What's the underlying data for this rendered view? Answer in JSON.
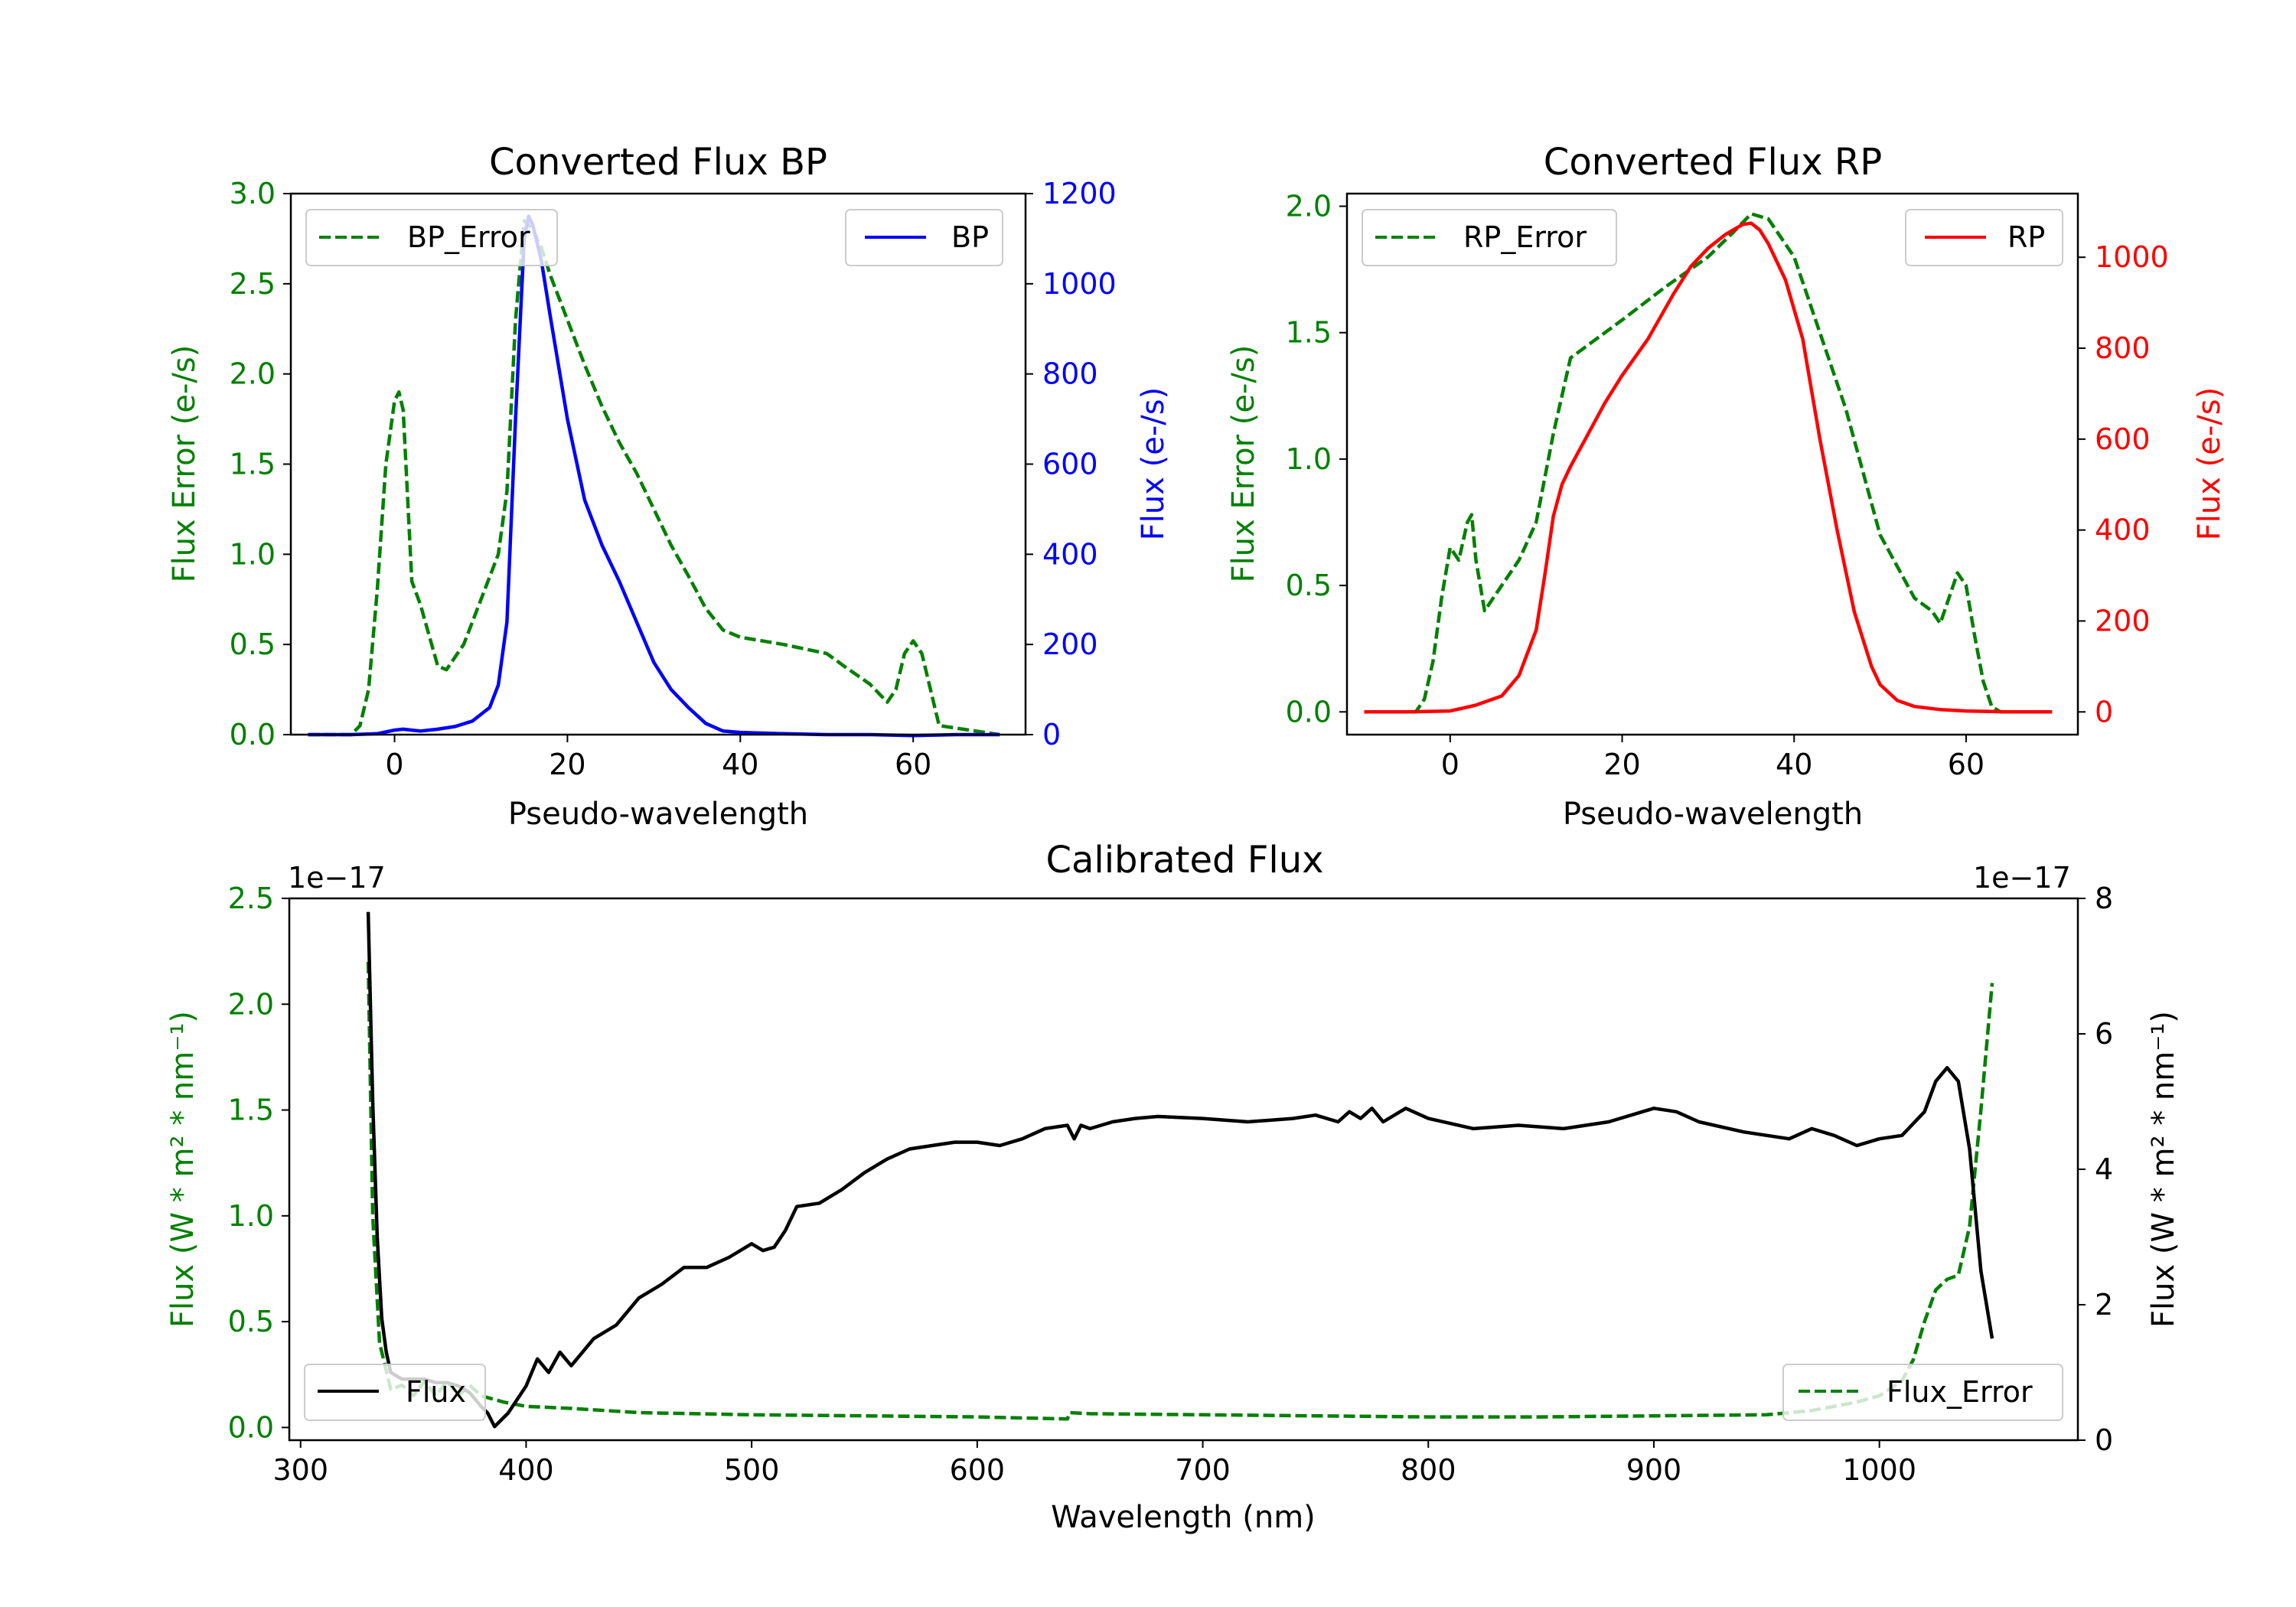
{
  "chart_data": [
    {
      "type": "line",
      "title": "Converted Flux BP",
      "xlabel": "Pseudo-wavelength",
      "ylabel_left": "Flux Error (e-/s)",
      "ylabel_right": "Flux (e-/s)",
      "xlim": [
        -12,
        73
      ],
      "ylim_left": [
        0,
        3.0
      ],
      "ylim_right": [
        0,
        1200
      ],
      "xticks": [
        0,
        20,
        40,
        60
      ],
      "yticks_left": [
        0.0,
        0.5,
        1.0,
        1.5,
        2.0,
        2.5,
        3.0
      ],
      "yticks_left_labels": [
        "0.0",
        "0.5",
        "1.0",
        "1.5",
        "2.0",
        "2.5",
        "3.0"
      ],
      "yticks_right": [
        0,
        200,
        400,
        600,
        800,
        1000,
        1200
      ],
      "left_color": "#008000",
      "right_color": "#0000ff",
      "series": [
        {
          "name": "BP_Error",
          "axis": "left",
          "style": "dashed",
          "color": "#008000",
          "x": [
            -10,
            -5,
            -4,
            -3,
            -2,
            -1,
            0,
            0.5,
            1,
            2,
            3,
            4,
            5,
            6,
            8,
            10,
            12,
            13,
            14,
            15,
            16,
            17,
            18,
            20,
            22,
            24,
            26,
            28,
            30,
            32,
            34,
            36,
            38,
            40,
            45,
            50,
            52,
            55,
            57,
            58,
            59,
            60,
            61,
            62,
            63,
            70
          ],
          "y": [
            0,
            0,
            0.05,
            0.25,
            0.8,
            1.5,
            1.85,
            1.9,
            1.8,
            0.85,
            0.72,
            0.55,
            0.38,
            0.36,
            0.5,
            0.75,
            1.0,
            1.35,
            2.3,
            2.85,
            2.8,
            2.7,
            2.55,
            2.3,
            2.05,
            1.82,
            1.62,
            1.45,
            1.25,
            1.05,
            0.88,
            0.7,
            0.58,
            0.54,
            0.5,
            0.45,
            0.38,
            0.28,
            0.18,
            0.25,
            0.45,
            0.52,
            0.45,
            0.25,
            0.05,
            0
          ]
        },
        {
          "name": "BP",
          "axis": "right",
          "style": "solid",
          "color": "#0000ff",
          "x": [
            -10,
            -5,
            -2,
            0,
            1,
            2,
            3,
            5,
            7,
            9,
            11,
            12,
            13,
            14,
            15,
            15.5,
            16,
            17,
            18,
            20,
            22,
            24,
            26,
            28,
            30,
            32,
            34,
            36,
            38,
            40,
            45,
            50,
            55,
            60,
            65,
            70
          ],
          "y": [
            0,
            0,
            2,
            10,
            12,
            10,
            8,
            12,
            18,
            30,
            60,
            110,
            250,
            700,
            1100,
            1150,
            1130,
            1050,
            930,
            700,
            520,
            420,
            340,
            250,
            160,
            100,
            60,
            25,
            8,
            5,
            2,
            0,
            0,
            -2,
            0,
            0
          ]
        }
      ],
      "legend": [
        {
          "label": "BP_Error",
          "position": "upper-left"
        },
        {
          "label": "BP",
          "position": "upper-right"
        }
      ]
    },
    {
      "type": "line",
      "title": "Converted Flux RP",
      "xlabel": "Pseudo-wavelength",
      "ylabel_left": "Flux Error (e-/s)",
      "ylabel_right": "Flux (e-/s)",
      "xlim": [
        -12,
        73
      ],
      "ylim_left": [
        -0.09,
        2.05
      ],
      "ylim_right": [
        -50,
        1140
      ],
      "xticks": [
        0,
        20,
        40,
        60
      ],
      "yticks_left": [
        0.0,
        0.5,
        1.0,
        1.5,
        2.0
      ],
      "yticks_left_labels": [
        "0.0",
        "0.5",
        "1.0",
        "1.5",
        "2.0"
      ],
      "yticks_right": [
        0,
        200,
        400,
        600,
        800,
        1000
      ],
      "left_color": "#008000",
      "right_color": "#ff0000",
      "series": [
        {
          "name": "RP_Error",
          "axis": "left",
          "style": "dashed",
          "color": "#008000",
          "x": [
            -10,
            -4,
            -3,
            -2,
            -1,
            0,
            1,
            2,
            2.5,
            3,
            4,
            5,
            6,
            8,
            10,
            12,
            14,
            16,
            20,
            25,
            30,
            33,
            35,
            37,
            40,
            43,
            46,
            50,
            54,
            56,
            57,
            58,
            59,
            60,
            61,
            62,
            63,
            64,
            70
          ],
          "y": [
            0,
            0,
            0.05,
            0.2,
            0.45,
            0.65,
            0.6,
            0.75,
            0.78,
            0.6,
            0.4,
            0.45,
            0.5,
            0.6,
            0.75,
            1.1,
            1.4,
            1.45,
            1.55,
            1.68,
            1.8,
            1.9,
            1.97,
            1.95,
            1.8,
            1.5,
            1.2,
            0.7,
            0.45,
            0.4,
            0.35,
            0.45,
            0.55,
            0.5,
            0.3,
            0.12,
            0.02,
            0,
            0
          ]
        },
        {
          "name": "RP",
          "axis": "right",
          "style": "solid",
          "color": "#ff0000",
          "x": [
            -10,
            -5,
            0,
            3,
            6,
            8,
            10,
            11,
            12,
            13,
            14,
            16,
            18,
            20,
            23,
            26,
            28,
            30,
            32,
            34,
            35,
            36,
            37,
            39,
            41,
            43,
            45,
            47,
            49,
            50,
            52,
            54,
            57,
            60,
            65,
            70
          ],
          "y": [
            0,
            0,
            2,
            15,
            35,
            80,
            180,
            300,
            430,
            500,
            540,
            610,
            680,
            740,
            820,
            920,
            980,
            1020,
            1050,
            1072,
            1075,
            1060,
            1030,
            950,
            820,
            600,
            400,
            220,
            100,
            60,
            25,
            12,
            5,
            2,
            0,
            0
          ]
        }
      ],
      "legend": [
        {
          "label": "RP_Error",
          "position": "upper-left"
        },
        {
          "label": "RP",
          "position": "upper-right"
        }
      ]
    },
    {
      "type": "line",
      "title": "Calibrated Flux",
      "xlabel": "Wavelength (nm)",
      "ylabel_left": "Flux (W * m² * nm⁻¹)",
      "ylabel_right": "Flux (W * m² * nm⁻¹)",
      "xlim": [
        295,
        1088
      ],
      "ylim_left": [
        -0.06,
        2.5
      ],
      "ylim_right": [
        0,
        8
      ],
      "scale_label_left": "1e−17",
      "scale_label_right": "1e−17",
      "xticks": [
        300,
        400,
        500,
        600,
        700,
        800,
        900,
        1000
      ],
      "yticks_left": [
        0.0,
        0.5,
        1.0,
        1.5,
        2.0,
        2.5
      ],
      "yticks_left_labels": [
        "0.0",
        "0.5",
        "1.0",
        "1.5",
        "2.0",
        "2.5"
      ],
      "yticks_right": [
        0,
        2,
        4,
        6,
        8
      ],
      "left_color": "#008000",
      "right_color": "#000000",
      "series": [
        {
          "name": "Flux_Error",
          "axis": "left",
          "style": "dashed",
          "color": "#008000",
          "x": [
            330,
            332,
            335,
            340,
            345,
            350,
            355,
            360,
            365,
            370,
            375,
            380,
            390,
            400,
            420,
            450,
            500,
            550,
            600,
            640,
            641,
            650,
            700,
            750,
            800,
            850,
            900,
            950,
            970,
            990,
            1000,
            1010,
            1015,
            1020,
            1025,
            1030,
            1035,
            1040,
            1045,
            1050
          ],
          "y": [
            2.2,
            1.0,
            0.4,
            0.18,
            0.2,
            0.15,
            0.22,
            0.15,
            0.22,
            0.15,
            0.2,
            0.15,
            0.12,
            0.1,
            0.09,
            0.07,
            0.06,
            0.055,
            0.05,
            0.04,
            0.07,
            0.065,
            0.06,
            0.055,
            0.05,
            0.05,
            0.055,
            0.06,
            0.08,
            0.12,
            0.15,
            0.22,
            0.32,
            0.5,
            0.65,
            0.7,
            0.72,
            0.95,
            1.5,
            2.1
          ]
        },
        {
          "name": "Flux",
          "axis": "right",
          "style": "solid",
          "color": "#000000",
          "x": [
            330,
            332,
            334,
            336,
            338,
            340,
            345,
            350,
            355,
            360,
            365,
            370,
            375,
            380,
            383,
            386,
            389,
            392,
            396,
            400,
            405,
            410,
            415,
            420,
            425,
            430,
            440,
            450,
            460,
            470,
            480,
            490,
            500,
            505,
            510,
            515,
            520,
            530,
            540,
            550,
            560,
            570,
            580,
            590,
            600,
            610,
            620,
            630,
            640,
            643,
            646,
            650,
            660,
            670,
            680,
            700,
            720,
            740,
            750,
            760,
            765,
            770,
            775,
            780,
            790,
            800,
            820,
            840,
            860,
            880,
            900,
            910,
            920,
            940,
            960,
            970,
            980,
            990,
            1000,
            1010,
            1020,
            1025,
            1030,
            1035,
            1040,
            1045,
            1050
          ],
          "y": [
            7.8,
            5.0,
            3.0,
            1.8,
            1.3,
            1.0,
            0.9,
            0.9,
            0.9,
            0.85,
            0.85,
            0.8,
            0.7,
            0.5,
            0.4,
            0.2,
            0.3,
            0.4,
            0.6,
            0.8,
            1.2,
            1.0,
            1.3,
            1.1,
            1.3,
            1.5,
            1.7,
            2.1,
            2.3,
            2.55,
            2.55,
            2.7,
            2.9,
            2.8,
            2.85,
            3.1,
            3.45,
            3.5,
            3.7,
            3.95,
            4.15,
            4.3,
            4.35,
            4.4,
            4.4,
            4.35,
            4.45,
            4.6,
            4.65,
            4.45,
            4.65,
            4.6,
            4.7,
            4.75,
            4.78,
            4.75,
            4.7,
            4.75,
            4.8,
            4.7,
            4.85,
            4.75,
            4.9,
            4.7,
            4.9,
            4.75,
            4.6,
            4.65,
            4.6,
            4.7,
            4.9,
            4.85,
            4.7,
            4.55,
            4.45,
            4.6,
            4.5,
            4.35,
            4.45,
            4.5,
            4.85,
            5.3,
            5.5,
            5.3,
            4.3,
            2.5,
            1.5
          ]
        }
      ],
      "legend": [
        {
          "label": "Flux",
          "position": "lower-left"
        },
        {
          "label": "Flux_Error",
          "position": "lower-right"
        }
      ]
    }
  ]
}
